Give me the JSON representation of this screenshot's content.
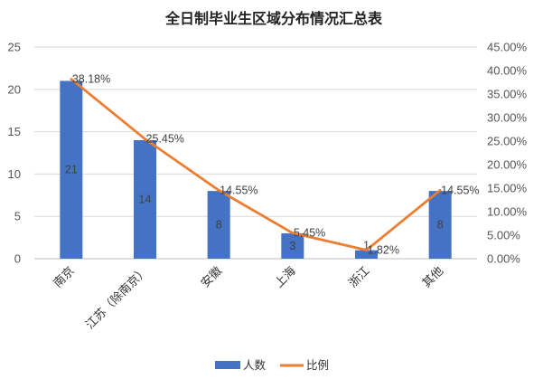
{
  "colors": {
    "bar": "#4472C4",
    "line": "#ED7D31",
    "grid": "#d9d9d9",
    "axis_text": "#595959"
  },
  "chart_data": {
    "type": "bar",
    "title": "全日制毕业生区域分布情况汇总表",
    "categories": [
      "南京",
      "江苏（除南京）",
      "安徽",
      "上海",
      "浙江",
      "其他"
    ],
    "series": [
      {
        "name": "人数",
        "type": "bar",
        "axis": "left",
        "values": [
          21,
          14,
          8,
          3,
          1,
          8
        ],
        "labels": [
          "21",
          "14",
          "8",
          "3",
          "1",
          "8"
        ]
      },
      {
        "name": "比例",
        "type": "line",
        "axis": "right",
        "values": [
          38.18,
          25.45,
          14.55,
          5.45,
          1.82,
          14.55
        ],
        "labels": [
          "38.18%",
          "25.45%",
          "14.55%",
          "5.45%",
          "1.82%",
          "14.55%"
        ]
      }
    ],
    "y_left": {
      "min": 0,
      "max": 25,
      "step": 5,
      "ticks": [
        "0",
        "5",
        "10",
        "15",
        "20",
        "25"
      ]
    },
    "y_right": {
      "min": 0,
      "max": 45,
      "step": 5,
      "ticks": [
        "0.00%",
        "5.00%",
        "10.00%",
        "15.00%",
        "20.00%",
        "25.00%",
        "30.00%",
        "35.00%",
        "40.00%",
        "45.00%"
      ]
    },
    "grid": true,
    "legend": {
      "position": "bottom",
      "items": [
        "人数",
        "比例"
      ]
    }
  }
}
